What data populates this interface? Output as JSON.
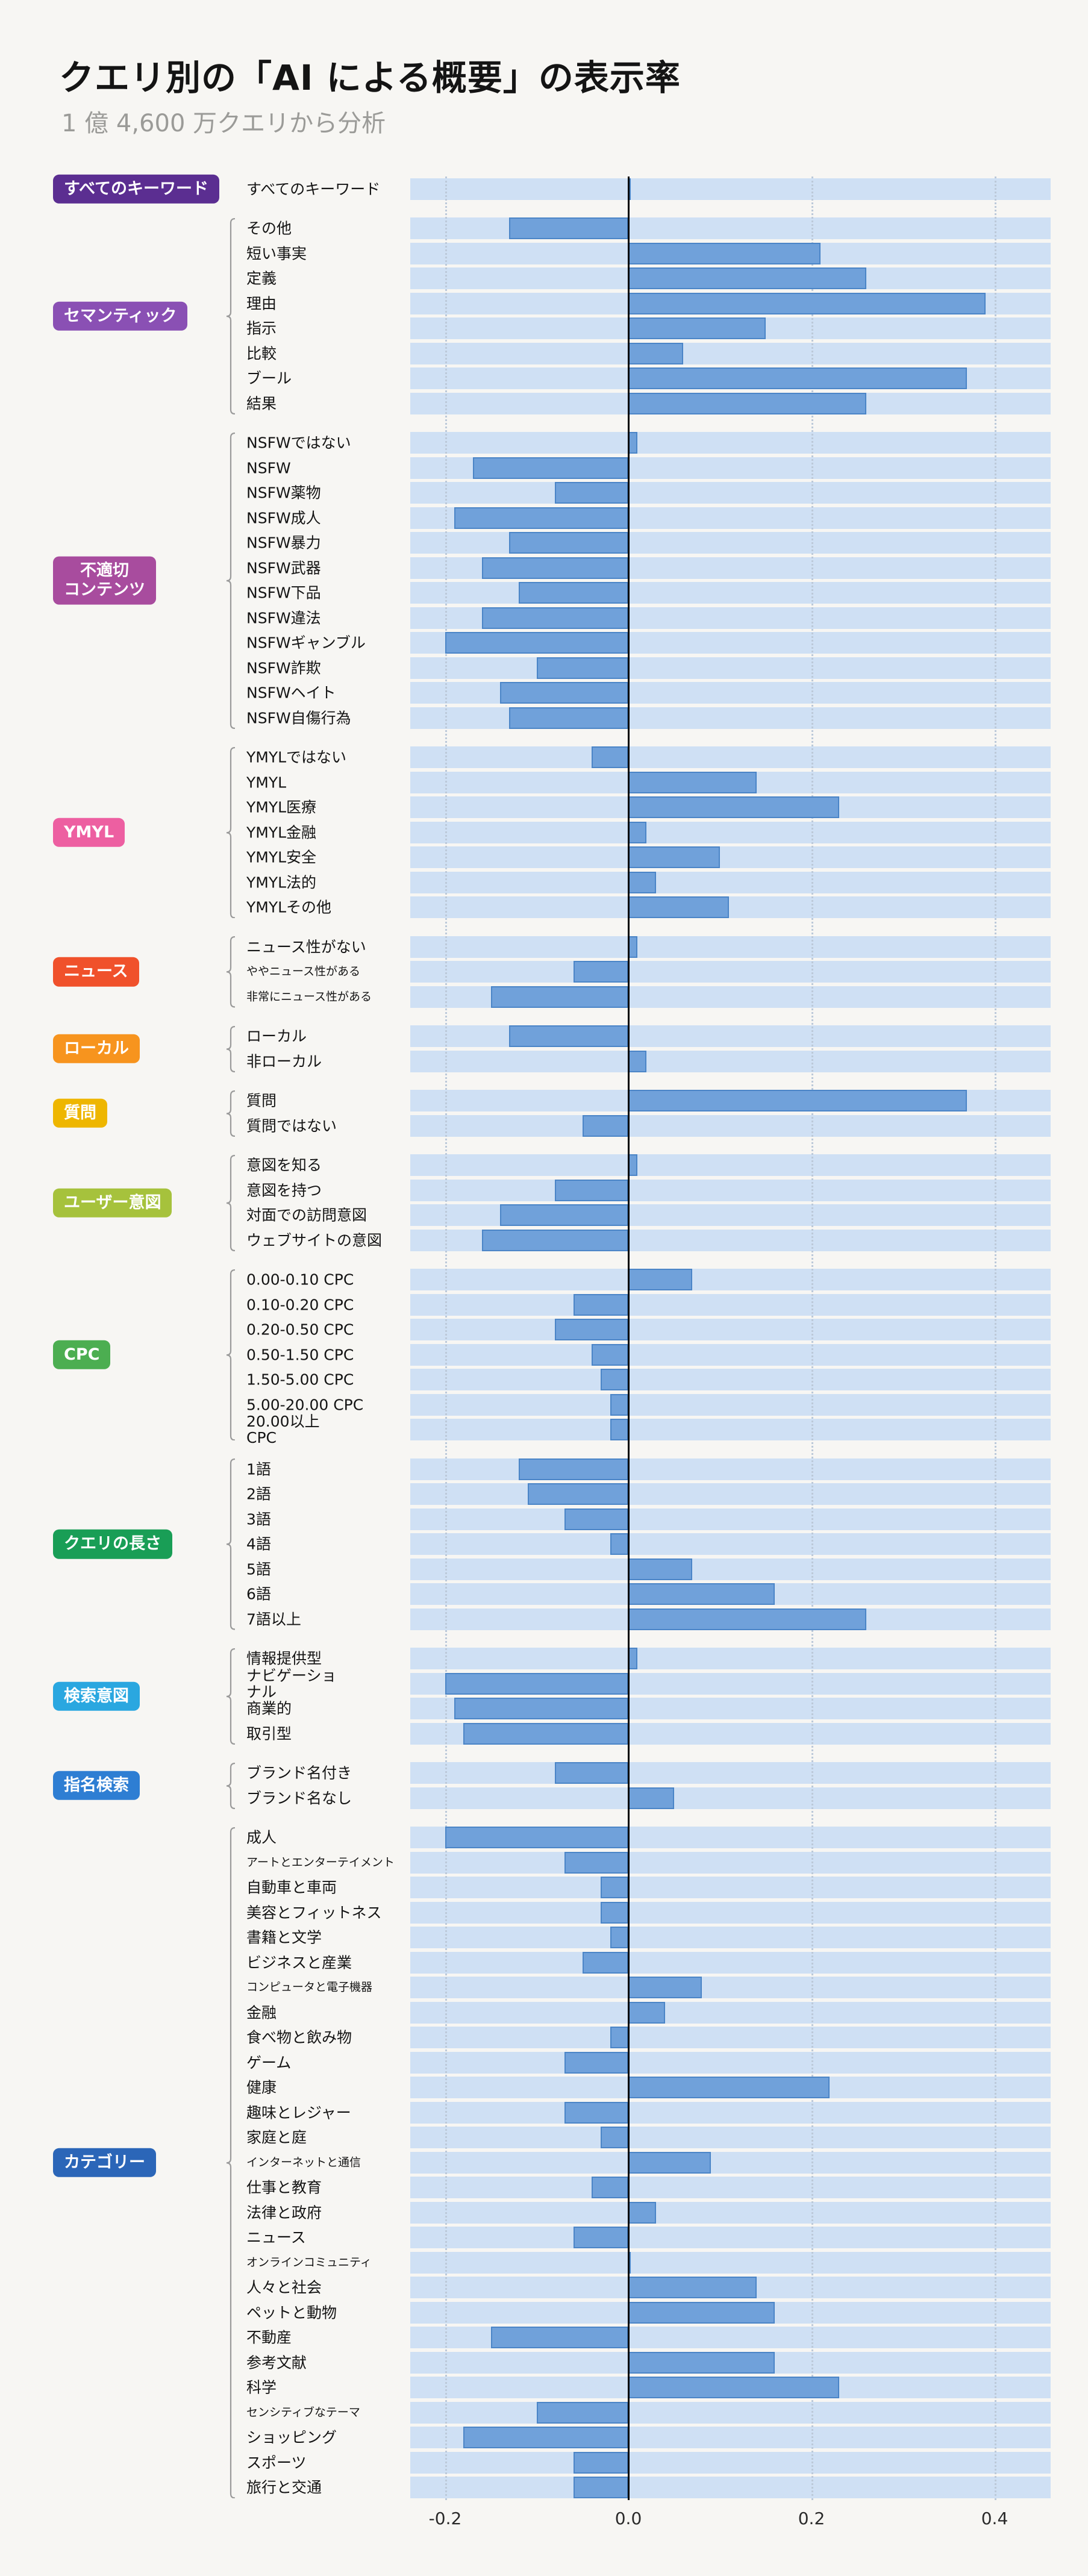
{
  "title": "クエリ別の「AI による概要」の表示率",
  "subtitle": "1 億 4,600 万クエリから分析",
  "colors": {
    "background": "#f7f6f3",
    "band": "#cfe0f4",
    "bar": "#70a1da",
    "bar_border": "#4b85c7",
    "zero_line": "#000000",
    "gridline": "#bcc9d9",
    "brace": "#9a9a9a"
  },
  "chart_data": {
    "type": "bar",
    "orientation": "horizontal",
    "title": "クエリ別の「AI による概要」の表示率",
    "subtitle": "1 億 4,600 万クエリから分析",
    "xlabel": "",
    "ylabel": "",
    "xlim": [
      -0.238,
      0.461
    ],
    "grid": "dotted-vertical",
    "zero_baseline": true,
    "legend": "none",
    "xticks": [
      {
        "label": "-0.2",
        "value": -0.2
      },
      {
        "label": "0.0",
        "value": 0.0
      },
      {
        "label": "0.2",
        "value": 0.2
      },
      {
        "label": "0.4",
        "value": 0.4
      }
    ],
    "groups": [
      {
        "label": "すべてのキーワード",
        "color": "#5b2e91",
        "rows": [
          {
            "label": "すべてのキーワード",
            "value": 0.0
          }
        ]
      },
      {
        "label": "セマンティック",
        "color": "#8a50b4",
        "rows": [
          {
            "label": "その他",
            "value": -0.13
          },
          {
            "label": "短い事実",
            "value": 0.21
          },
          {
            "label": "定義",
            "value": 0.26
          },
          {
            "label": "理由",
            "value": 0.39
          },
          {
            "label": "指示",
            "value": 0.15
          },
          {
            "label": "比較",
            "value": 0.06
          },
          {
            "label": "ブール",
            "value": 0.37
          },
          {
            "label": "結果",
            "value": 0.26
          }
        ]
      },
      {
        "label": "不適切\nコンテンツ",
        "color": "#a84c9e",
        "rows": [
          {
            "label": "NSFWではない",
            "value": 0.01
          },
          {
            "label": "NSFW",
            "value": -0.17
          },
          {
            "label": "NSFW薬物",
            "value": -0.08
          },
          {
            "label": "NSFW成人",
            "value": -0.19
          },
          {
            "label": "NSFW暴力",
            "value": -0.13
          },
          {
            "label": "NSFW武器",
            "value": -0.16
          },
          {
            "label": "NSFW下品",
            "value": -0.12
          },
          {
            "label": "NSFW違法",
            "value": -0.16
          },
          {
            "label": "NSFWギャンブル",
            "value": -0.2
          },
          {
            "label": "NSFW詐欺",
            "value": -0.1
          },
          {
            "label": "NSFWヘイト",
            "value": -0.14
          },
          {
            "label": "NSFW自傷行為",
            "value": -0.13
          }
        ]
      },
      {
        "label": "YMYL",
        "color": "#ed5fa1",
        "rows": [
          {
            "label": "YMYLではない",
            "value": -0.04
          },
          {
            "label": "YMYL",
            "value": 0.14
          },
          {
            "label": "YMYL医療",
            "value": 0.23
          },
          {
            "label": "YMYL金融",
            "value": 0.02
          },
          {
            "label": "YMYL安全",
            "value": 0.1
          },
          {
            "label": "YMYL法的",
            "value": 0.03
          },
          {
            "label": "YMYLその他",
            "value": 0.11
          }
        ]
      },
      {
        "label": "ニュース",
        "color": "#f0512b",
        "rows": [
          {
            "label": "ニュース性がない",
            "value": 0.01
          },
          {
            "label": "ややニュース性がある",
            "value": -0.06
          },
          {
            "label": "非常にニュース性がある",
            "value": -0.15
          }
        ]
      },
      {
        "label": "ローカル",
        "color": "#f7941e",
        "rows": [
          {
            "label": "ローカル",
            "value": -0.13
          },
          {
            "label": "非ローカル",
            "value": 0.02
          }
        ]
      },
      {
        "label": "質問",
        "color": "#eeb600",
        "rows": [
          {
            "label": "質問",
            "value": 0.37
          },
          {
            "label": "質問ではない",
            "value": -0.05
          }
        ]
      },
      {
        "label": "ユーザー意図",
        "color": "#a6c23c",
        "rows": [
          {
            "label": "意図を知る",
            "value": 0.01
          },
          {
            "label": "意図を持つ",
            "value": -0.08
          },
          {
            "label": "対面での訪問意図",
            "value": -0.14
          },
          {
            "label": "ウェブサイトの意図",
            "value": -0.16
          }
        ]
      },
      {
        "label": "CPC",
        "color": "#4cae51",
        "rows": [
          {
            "label": "0.00-0.10 CPC",
            "value": 0.07
          },
          {
            "label": "0.10-0.20 CPC",
            "value": -0.06
          },
          {
            "label": "0.20-0.50 CPC",
            "value": -0.08
          },
          {
            "label": "0.50-1.50 CPC",
            "value": -0.04
          },
          {
            "label": "1.50-5.00 CPC",
            "value": -0.03
          },
          {
            "label": "5.00-20.00 CPC",
            "value": -0.02
          },
          {
            "label": "20.00以上\nCPC",
            "value": -0.02
          }
        ]
      },
      {
        "label": "クエリの長さ",
        "color": "#199e56",
        "rows": [
          {
            "label": "1語",
            "value": -0.12
          },
          {
            "label": "2語",
            "value": -0.11
          },
          {
            "label": "3語",
            "value": -0.07
          },
          {
            "label": "4語",
            "value": -0.02
          },
          {
            "label": "5語",
            "value": 0.07
          },
          {
            "label": "6語",
            "value": 0.16
          },
          {
            "label": "7語以上",
            "value": 0.26
          }
        ]
      },
      {
        "label": "検索意図",
        "color": "#2aa7e0",
        "rows": [
          {
            "label": "情報提供型",
            "value": 0.01
          },
          {
            "label": "ナビゲーショ\nナル",
            "value": -0.2
          },
          {
            "label": "商業的",
            "value": -0.19
          },
          {
            "label": "取引型",
            "value": -0.18
          }
        ]
      },
      {
        "label": "指名検索",
        "color": "#2e7ed3",
        "rows": [
          {
            "label": "ブランド名付き",
            "value": -0.08
          },
          {
            "label": "ブランド名なし",
            "value": 0.05
          }
        ]
      },
      {
        "label": "カテゴリー",
        "color": "#2b66b8",
        "rows": [
          {
            "label": "成人",
            "value": -0.2
          },
          {
            "label": "アートとエンターテイメント",
            "value": -0.07
          },
          {
            "label": "自動車と車両",
            "value": -0.03
          },
          {
            "label": "美容とフィットネス",
            "value": -0.03
          },
          {
            "label": "書籍と文学",
            "value": -0.02
          },
          {
            "label": "ビジネスと産業",
            "value": -0.05
          },
          {
            "label": "コンピュータと電子機器",
            "value": 0.08
          },
          {
            "label": "金融",
            "value": 0.04
          },
          {
            "label": "食べ物と飲み物",
            "value": -0.02
          },
          {
            "label": "ゲーム",
            "value": -0.07
          },
          {
            "label": "健康",
            "value": 0.22
          },
          {
            "label": "趣味とレジャー",
            "value": -0.07
          },
          {
            "label": "家庭と庭",
            "value": -0.03
          },
          {
            "label": "インターネットと通信",
            "value": 0.09
          },
          {
            "label": "仕事と教育",
            "value": -0.04
          },
          {
            "label": "法律と政府",
            "value": 0.03
          },
          {
            "label": "ニュース",
            "value": -0.06
          },
          {
            "label": "オンラインコミュニティ",
            "value": 0.0
          },
          {
            "label": "人々と社会",
            "value": 0.14
          },
          {
            "label": "ペットと動物",
            "value": 0.16
          },
          {
            "label": "不動産",
            "value": -0.15
          },
          {
            "label": "参考文献",
            "value": 0.16
          },
          {
            "label": "科学",
            "value": 0.23
          },
          {
            "label": "センシティブなテーマ",
            "value": -0.1
          },
          {
            "label": "ショッピング",
            "value": -0.18
          },
          {
            "label": "スポーツ",
            "value": -0.06
          },
          {
            "label": "旅行と交通",
            "value": -0.06
          }
        ]
      }
    ]
  }
}
